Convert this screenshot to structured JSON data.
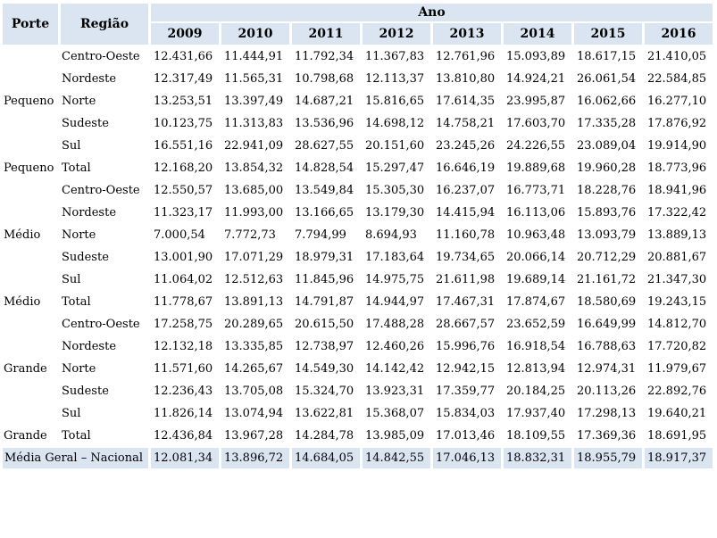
{
  "colors": {
    "header_bg": "#dbe5f1",
    "highlight_bg": "#dbe5f1",
    "text": "#000000",
    "background": "#ffffff"
  },
  "chart_data": {
    "type": "table",
    "header": {
      "porte": "Porte",
      "regiao": "Região",
      "ano": "Ano",
      "years": [
        "2009",
        "2010",
        "2011",
        "2012",
        "2013",
        "2014",
        "2015",
        "2016"
      ]
    },
    "rows": [
      {
        "porte": "",
        "regiao": "Centro-Oeste",
        "values": [
          "12.431,66",
          "11.444,91",
          "11.792,34",
          "11.367,83",
          "12.761,96",
          "15.093,89",
          "18.617,15",
          "21.410,05"
        ]
      },
      {
        "porte": "",
        "regiao": "Nordeste",
        "values": [
          "12.317,49",
          "11.565,31",
          "10.798,68",
          "12.113,37",
          "13.810,80",
          "14.924,21",
          "26.061,54",
          "22.584,85"
        ]
      },
      {
        "porte": "Pequeno",
        "regiao": "Norte",
        "values": [
          "13.253,51",
          "13.397,49",
          "14.687,21",
          "15.816,65",
          "17.614,35",
          "23.995,87",
          "16.062,66",
          "16.277,10"
        ]
      },
      {
        "porte": "",
        "regiao": "Sudeste",
        "values": [
          "10.123,75",
          "11.313,83",
          "13.536,96",
          "14.698,12",
          "14.758,21",
          "17.603,70",
          "17.335,28",
          "17.876,92"
        ]
      },
      {
        "porte": "",
        "regiao": "Sul",
        "values": [
          "16.551,16",
          "22.941,09",
          "28.627,55",
          "20.151,60",
          "23.245,26",
          "24.226,55",
          "23.089,04",
          "19.914,90"
        ]
      },
      {
        "porte": "Pequeno",
        "regiao": "Total",
        "values": [
          "12.168,20",
          "13.854,32",
          "14.828,54",
          "15.297,47",
          "16.646,19",
          "19.889,68",
          "19.960,28",
          "18.773,96"
        ]
      },
      {
        "porte": "",
        "regiao": "Centro-Oeste",
        "values": [
          "12.550,57",
          "13.685,00",
          "13.549,84",
          "15.305,30",
          "16.237,07",
          "16.773,71",
          "18.228,76",
          "18.941,96"
        ]
      },
      {
        "porte": "",
        "regiao": "Nordeste",
        "values": [
          "11.323,17",
          "11.993,00",
          "13.166,65",
          "13.179,30",
          "14.415,94",
          "16.113,06",
          "15.893,76",
          "17.322,42"
        ]
      },
      {
        "porte": "Médio",
        "regiao": "Norte",
        "values": [
          "7.000,54",
          "7.772,73",
          "7.794,99",
          "8.694,93",
          "11.160,78",
          "10.963,48",
          "13.093,79",
          "13.889,13"
        ]
      },
      {
        "porte": "",
        "regiao": "Sudeste",
        "values": [
          "13.001,90",
          "17.071,29",
          "18.979,31",
          "17.183,64",
          "19.734,65",
          "20.066,14",
          "20.712,29",
          "20.881,67"
        ]
      },
      {
        "porte": "",
        "regiao": "Sul",
        "values": [
          "11.064,02",
          "12.512,63",
          "11.845,96",
          "14.975,75",
          "21.611,98",
          "19.689,14",
          "21.161,72",
          "21.347,30"
        ]
      },
      {
        "porte": "Médio",
        "regiao": "Total",
        "values": [
          "11.778,67",
          "13.891,13",
          "14.791,87",
          "14.944,97",
          "17.467,31",
          "17.874,67",
          "18.580,69",
          "19.243,15"
        ]
      },
      {
        "porte": "",
        "regiao": "Centro-Oeste",
        "values": [
          "17.258,75",
          "20.289,65",
          "20.615,50",
          "17.488,28",
          "28.667,57",
          "23.652,59",
          "16.649,99",
          "14.812,70"
        ]
      },
      {
        "porte": "",
        "regiao": "Nordeste",
        "values": [
          "12.132,18",
          "13.335,85",
          "12.738,97",
          "12.460,26",
          "15.996,76",
          "16.918,54",
          "16.788,63",
          "17.720,82"
        ]
      },
      {
        "porte": "Grande",
        "regiao": "Norte",
        "values": [
          "11.571,60",
          "14.265,67",
          "14.549,30",
          "14.142,42",
          "12.942,15",
          "12.813,94",
          "12.974,31",
          "11.979,67"
        ]
      },
      {
        "porte": "",
        "regiao": "Sudeste",
        "values": [
          "12.236,43",
          "13.705,08",
          "15.324,70",
          "13.923,31",
          "17.359,77",
          "20.184,25",
          "20.113,26",
          "22.892,76"
        ]
      },
      {
        "porte": "",
        "regiao": "Sul",
        "values": [
          "11.826,14",
          "13.074,94",
          "13.622,81",
          "15.368,07",
          "15.834,03",
          "17.937,40",
          "17.298,13",
          "19.640,21"
        ]
      },
      {
        "porte": "Grande",
        "regiao": "Total",
        "values": [
          "12.436,84",
          "13.967,28",
          "14.284,78",
          "13.985,09",
          "17.013,46",
          "18.109,55",
          "17.369,36",
          "18.691,95"
        ]
      }
    ],
    "footer": {
      "label": "Média Geral – Nacional",
      "values": [
        "12.081,34",
        "13.896,72",
        "14.684,05",
        "14.842,55",
        "17.046,13",
        "18.832,31",
        "18.955,79",
        "18.917,37"
      ]
    }
  }
}
